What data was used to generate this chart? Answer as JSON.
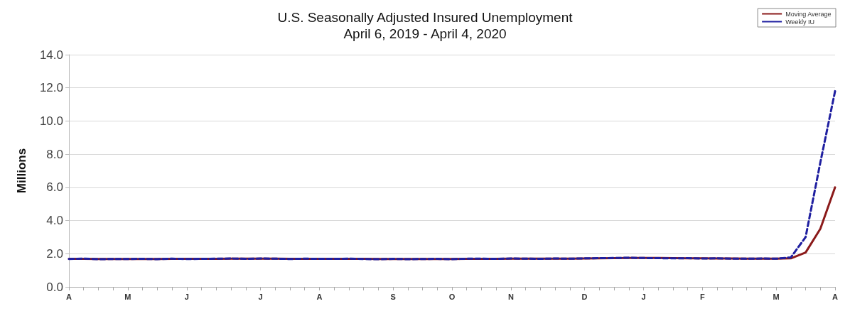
{
  "chart_data": {
    "type": "line",
    "title": "U.S. Seasonally Adjusted Insured Unemployment",
    "subtitle": "April 6, 2019 - April 4, 2020",
    "ylabel": "Millions",
    "categories": [
      "A",
      null,
      null,
      null,
      "M",
      null,
      null,
      null,
      "J",
      null,
      null,
      null,
      null,
      "J",
      null,
      null,
      null,
      "A",
      null,
      null,
      null,
      null,
      "S",
      null,
      null,
      null,
      "O",
      null,
      null,
      null,
      "N",
      null,
      null,
      null,
      null,
      "D",
      null,
      null,
      null,
      "J",
      null,
      null,
      null,
      "F",
      null,
      null,
      null,
      null,
      "M",
      null,
      null,
      null,
      "A"
    ],
    "series": [
      {
        "name": "Moving Average",
        "color": "#8b1a1a",
        "line_style": "solid",
        "values": [
          1.69,
          1.69,
          1.68,
          1.68,
          1.68,
          1.68,
          1.68,
          1.69,
          1.69,
          1.69,
          1.69,
          1.7,
          1.7,
          1.7,
          1.7,
          1.69,
          1.69,
          1.69,
          1.69,
          1.69,
          1.69,
          1.68,
          1.68,
          1.68,
          1.68,
          1.68,
          1.68,
          1.69,
          1.69,
          1.69,
          1.7,
          1.7,
          1.7,
          1.7,
          1.7,
          1.71,
          1.72,
          1.73,
          1.74,
          1.75,
          1.74,
          1.73,
          1.72,
          1.72,
          1.71,
          1.71,
          1.7,
          1.7,
          1.7,
          1.72,
          2.07,
          3.5,
          6.0
        ]
      },
      {
        "name": "Weekly IU",
        "color": "#1f1fa0",
        "line_style": "dashed",
        "values": [
          1.68,
          1.7,
          1.67,
          1.68,
          1.68,
          1.69,
          1.67,
          1.7,
          1.68,
          1.69,
          1.7,
          1.71,
          1.69,
          1.71,
          1.7,
          1.68,
          1.7,
          1.69,
          1.69,
          1.7,
          1.68,
          1.67,
          1.69,
          1.67,
          1.68,
          1.69,
          1.67,
          1.7,
          1.7,
          1.69,
          1.71,
          1.7,
          1.69,
          1.71,
          1.7,
          1.72,
          1.73,
          1.74,
          1.76,
          1.74,
          1.73,
          1.72,
          1.73,
          1.71,
          1.72,
          1.7,
          1.7,
          1.71,
          1.7,
          1.78,
          3.0,
          7.5,
          11.8
        ]
      }
    ],
    "ylim": [
      0,
      14
    ],
    "yticks": [
      {
        "value": 0,
        "label": "0.0"
      },
      {
        "value": 2,
        "label": "2.0"
      },
      {
        "value": 4,
        "label": "4.0"
      },
      {
        "value": 6,
        "label": "6.0"
      },
      {
        "value": 8,
        "label": "8.0"
      },
      {
        "value": 10,
        "label": "10.0"
      },
      {
        "value": 12,
        "label": "12.0"
      },
      {
        "value": 14,
        "label": "14.0"
      }
    ],
    "grid": "y",
    "legend": "top right",
    "marker": "none"
  }
}
